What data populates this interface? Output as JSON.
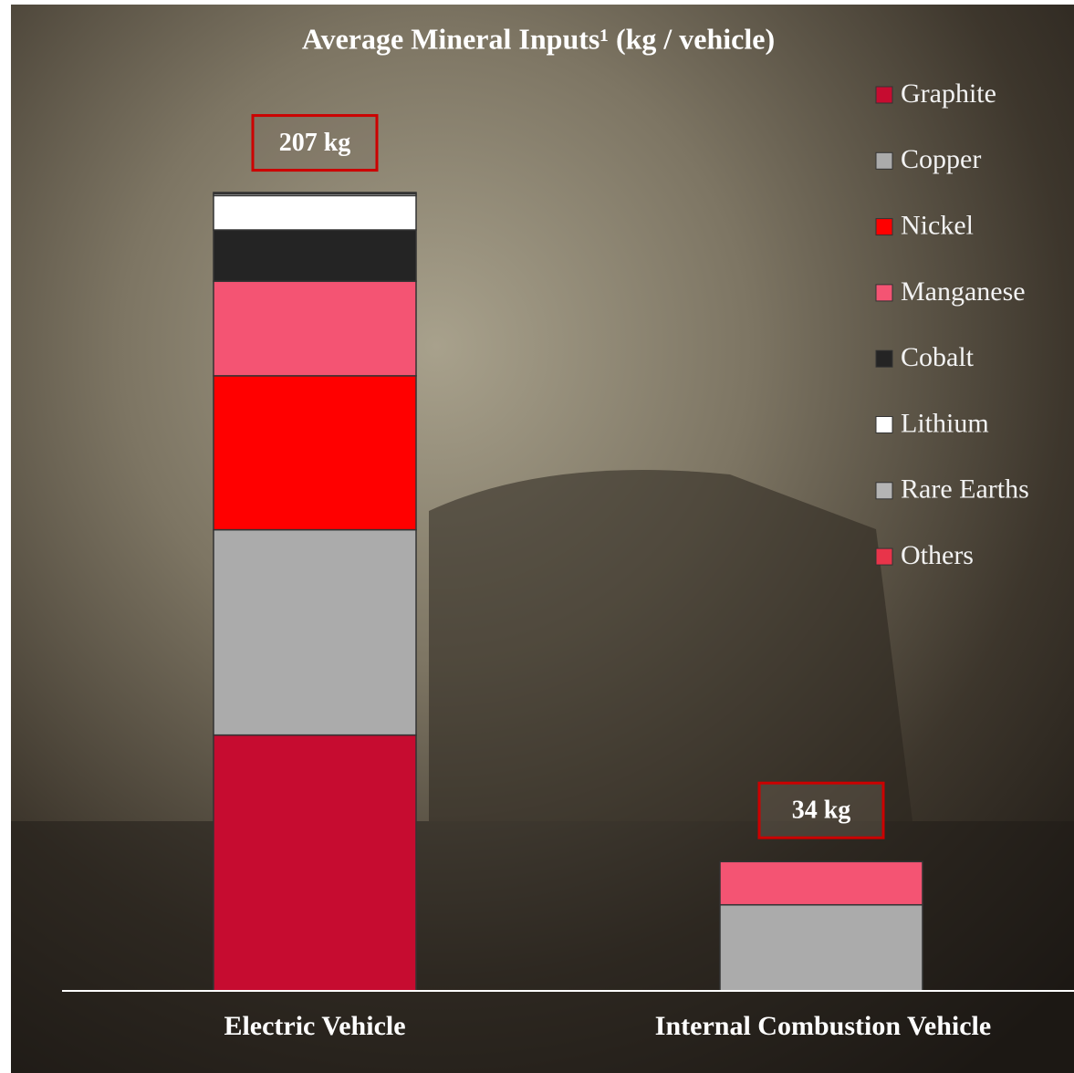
{
  "chart_data": {
    "type": "stacked_bar",
    "title": "Average Mineral Inputs¹ (kg / vehicle)",
    "categories": [
      "Electric Vehicle",
      "Internal Combustion Vehicle"
    ],
    "series": [
      {
        "name": "Graphite",
        "color": "#c60c30",
        "values": [
          66.3,
          0
        ]
      },
      {
        "name": "Copper",
        "color": "#ababab",
        "values": [
          53.2,
          22.3
        ]
      },
      {
        "name": "Nickel",
        "color": "#ff0000",
        "values": [
          39.9,
          0
        ]
      },
      {
        "name": "Manganese",
        "color": "#f45473",
        "values": [
          24.5,
          11.2
        ]
      },
      {
        "name": "Cobalt",
        "color": "#242424",
        "values": [
          13.3,
          0
        ]
      },
      {
        "name": "Lithium",
        "color": "#ffffff",
        "values": [
          8.9,
          0
        ]
      },
      {
        "name": "Rare Earths",
        "color": "#b4b4b4",
        "values": [
          0.5,
          0
        ]
      },
      {
        "name": "Others",
        "color": "#e8344a",
        "values": [
          0.3,
          0
        ]
      }
    ],
    "totals": [
      207,
      34
    ],
    "total_labels": [
      "207 kg",
      "34 kg"
    ],
    "ylim": [
      0,
      240
    ],
    "legend": "right"
  }
}
